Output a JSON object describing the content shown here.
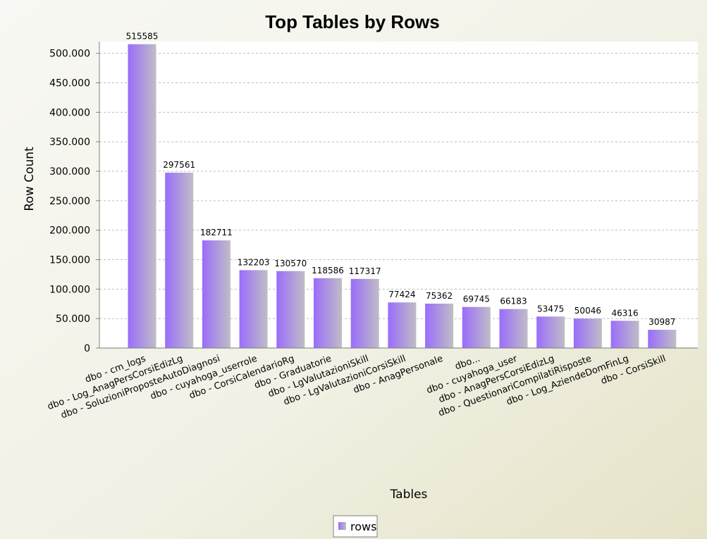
{
  "colors": {
    "bar_light": "#9a6dfb",
    "bar_dark": "#c0bdc6",
    "bg_left": "#f3f2ec",
    "bg_right": "#e6e4c9",
    "grid": "#bcbcbc",
    "axis": "#808080"
  },
  "chart_data": {
    "type": "bar",
    "title": "Top Tables by Rows",
    "xlabel": "Tables",
    "ylabel": "Row Count",
    "ylim": [
      0,
      520000
    ],
    "yticks": [
      0,
      50000,
      100000,
      150000,
      200000,
      250000,
      300000,
      350000,
      400000,
      450000,
      500000
    ],
    "ytick_labels": [
      "0",
      "50.000",
      "100.000",
      "150.000",
      "200.000",
      "250.000",
      "300.000",
      "350.000",
      "400.000",
      "450.000",
      "500.000"
    ],
    "grid": true,
    "legend_position": "bottom",
    "categories": [
      "dbo - cm_logs",
      "dbo - Log_AnagPersCorsiEdizLg",
      "dbo - SoluzioniProposteAutoDiagnosi",
      "dbo - cuyahoga_userrole",
      "dbo - CorsiCalendarioRg",
      "dbo - Graduatorie",
      "dbo - LgValutazioniSkill",
      "dbo - LgValutazioniCorsiSkill",
      "dbo - AnagPersonale",
      "dbo...",
      "dbo - cuyahoga_user",
      "dbo - AnagPersCorsiEdizLg",
      "dbo - QuestionariCompilatiRisposte",
      "dbo - Log_AziendeDomFinLg",
      "dbo - CorsiSkill"
    ],
    "series": [
      {
        "name": "rows",
        "values": [
          515585,
          297561,
          182711,
          132203,
          130570,
          118586,
          117317,
          77424,
          75362,
          69745,
          66183,
          53475,
          50046,
          46316,
          30987
        ]
      }
    ]
  }
}
